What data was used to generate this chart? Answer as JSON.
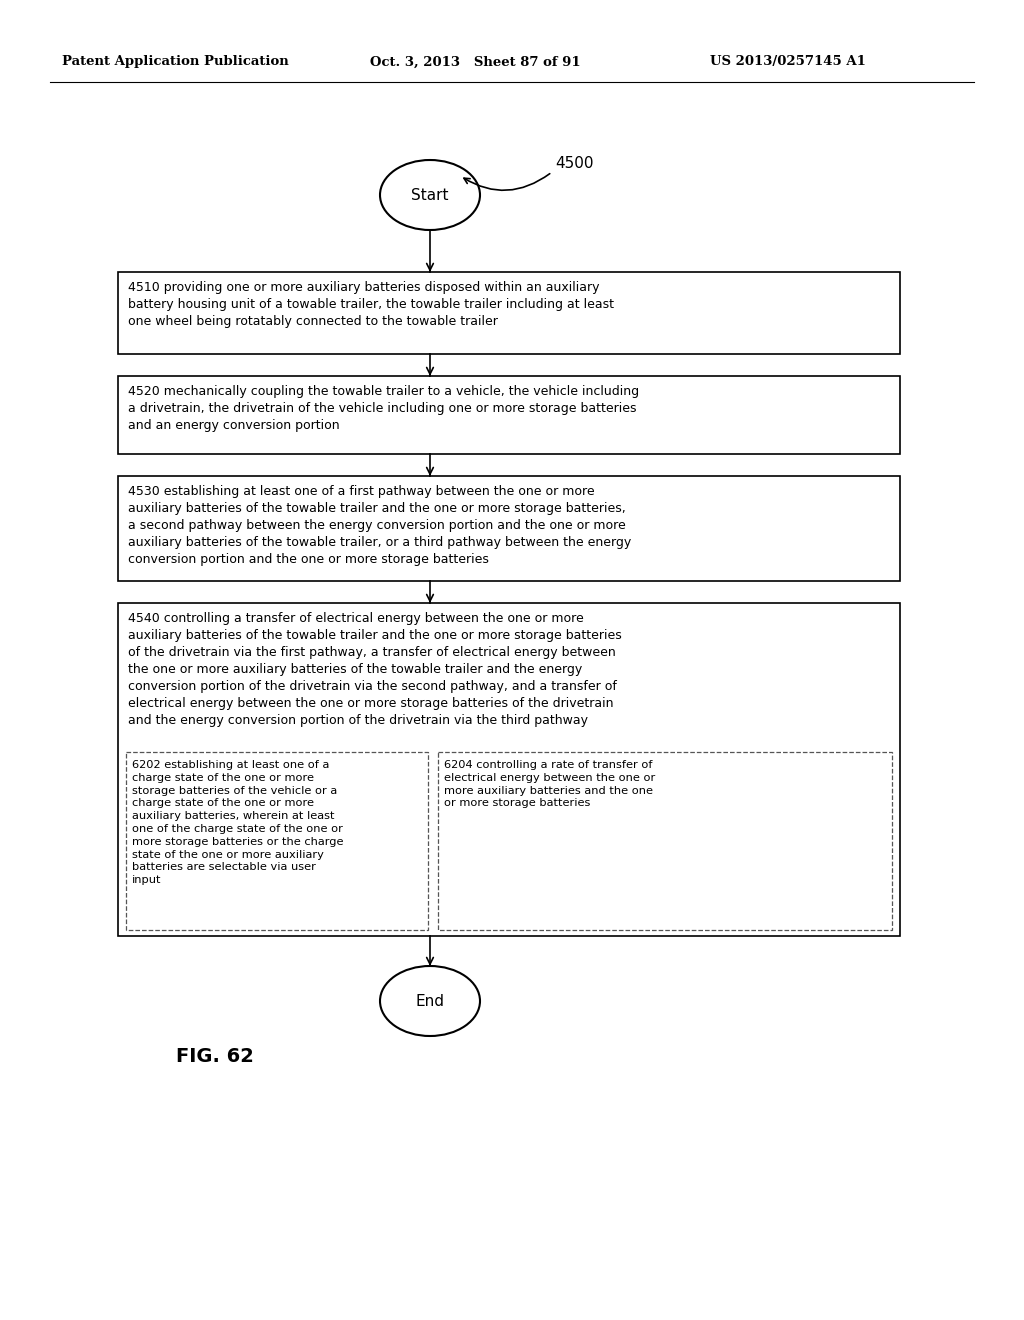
{
  "header_left": "Patent Application Publication",
  "header_mid": "Oct. 3, 2013   Sheet 87 of 91",
  "header_right": "US 2013/0257145 A1",
  "figure_label": "FIG. 62",
  "diagram_label": "4500",
  "start_label": "Start",
  "end_label": "End",
  "box4510": "4510 providing one or more auxiliary batteries disposed within an auxiliary\nbattery housing unit of a towable trailer, the towable trailer including at least\none wheel being rotatably connected to the towable trailer",
  "box4520": "4520 mechanically coupling the towable trailer to a vehicle, the vehicle including\na drivetrain, the drivetrain of the vehicle including one or more storage batteries\nand an energy conversion portion",
  "box4530": "4530 establishing at least one of a first pathway between the one or more\nauxiliary batteries of the towable trailer and the one or more storage batteries,\na second pathway between the energy conversion portion and the one or more\nauxiliary batteries of the towable trailer, or a third pathway between the energy\nconversion portion and the one or more storage batteries",
  "box4540_main": "4540 controlling a transfer of electrical energy between the one or more\nauxiliary batteries of the towable trailer and the one or more storage batteries\nof the drivetrain via the first pathway, a transfer of electrical energy between\nthe one or more auxiliary batteries of the towable trailer and the energy\nconversion portion of the drivetrain via the second pathway, and a transfer of\nelectrical energy between the one or more storage batteries of the drivetrain\nand the energy conversion portion of the drivetrain via the third pathway",
  "box6202": "6202 establishing at least one of a\ncharge state of the one or more\nstorage batteries of the vehicle or a\ncharge state of the one or more\nauxiliary batteries, wherein at least\none of the charge state of the one or\nmore storage batteries or the charge\nstate of the one or more auxiliary\nbatteries are selectable via user\ninput",
  "box6204": "6204 controlling a rate of transfer of\nelectrical energy between the one or\nmore auxiliary batteries and the one\nor more storage batteries",
  "bg_color": "#ffffff",
  "text_color": "#000000"
}
